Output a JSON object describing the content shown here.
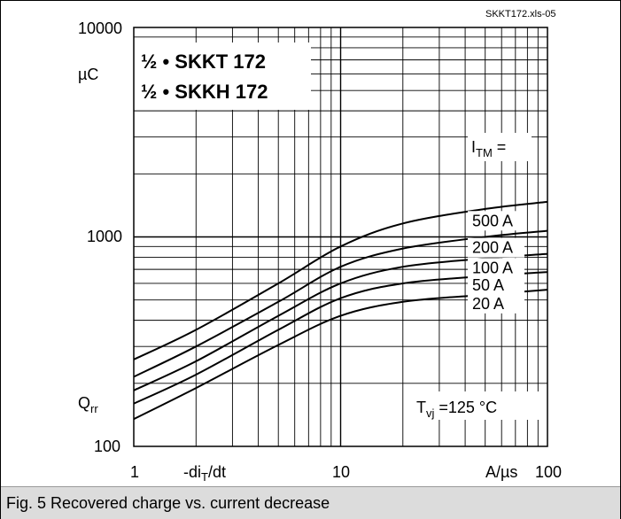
{
  "file_label": "SKKT172.xls-05",
  "caption": "Fig. 5 Recovered charge vs. current decrease",
  "chart_data": {
    "type": "line",
    "title_lines": [
      "½ • SKKT 172",
      "½ • SKKH 172"
    ],
    "xscale": "log",
    "yscale": "log",
    "xlim": [
      1,
      100
    ],
    "ylim": [
      100,
      10000
    ],
    "x_tick_labels": [
      "1",
      "10",
      "100"
    ],
    "y_tick_labels": [
      "10000",
      "1000",
      "100"
    ],
    "xlabel": "-di",
    "xlabel_sub": "T",
    "xlabel_tail": "/dt",
    "x_unit": "A/µs",
    "ylabel": "Q",
    "ylabel_sub": "rr",
    "y_unit": "µC",
    "legend_title": "I",
    "legend_title_sub": "TM",
    "legend_title_tail": " =",
    "condition": "T",
    "condition_sub": "vj",
    "condition_tail": " =125  °C",
    "grid": true,
    "series": [
      {
        "name": "500 A",
        "x": [
          1,
          2,
          5,
          10,
          20,
          50,
          100
        ],
        "y": [
          260,
          360,
          600,
          900,
          1160,
          1360,
          1470
        ]
      },
      {
        "name": "200 A",
        "x": [
          1,
          2,
          5,
          10,
          20,
          50,
          100
        ],
        "y": [
          215,
          300,
          490,
          720,
          880,
          1000,
          1070
        ]
      },
      {
        "name": "100 A",
        "x": [
          1,
          2,
          5,
          10,
          20,
          50,
          100
        ],
        "y": [
          185,
          255,
          420,
          600,
          720,
          790,
          830
        ]
      },
      {
        "name": "50 A",
        "x": [
          1,
          2,
          5,
          10,
          20,
          50,
          100
        ],
        "y": [
          160,
          220,
          360,
          510,
          600,
          650,
          680
        ]
      },
      {
        "name": "20 A",
        "x": [
          1,
          2,
          5,
          10,
          20,
          50,
          100
        ],
        "y": [
          135,
          190,
          305,
          420,
          490,
          530,
          560
        ]
      }
    ]
  }
}
